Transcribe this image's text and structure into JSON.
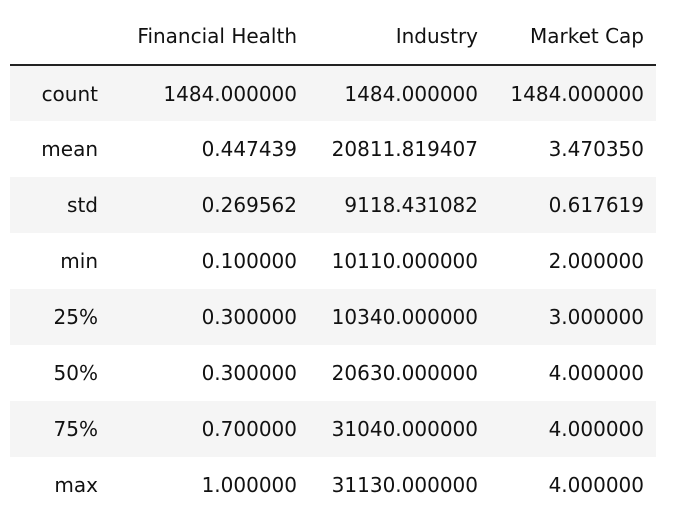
{
  "table": {
    "index_header": "",
    "columns": [
      "Financial Health",
      "Industry",
      "Market Cap"
    ],
    "rows": [
      {
        "label": "count",
        "values": [
          "1484.000000",
          "1484.000000",
          "1484.000000"
        ]
      },
      {
        "label": "mean",
        "values": [
          "0.447439",
          "20811.819407",
          "3.470350"
        ]
      },
      {
        "label": "std",
        "values": [
          "0.269562",
          "9118.431082",
          "0.617619"
        ]
      },
      {
        "label": "min",
        "values": [
          "0.100000",
          "10110.000000",
          "2.000000"
        ]
      },
      {
        "label": "25%",
        "values": [
          "0.300000",
          "10340.000000",
          "3.000000"
        ]
      },
      {
        "label": "50%",
        "values": [
          "0.300000",
          "20630.000000",
          "4.000000"
        ]
      },
      {
        "label": "75%",
        "values": [
          "0.700000",
          "31040.000000",
          "4.000000"
        ]
      },
      {
        "label": "max",
        "values": [
          "1.000000",
          "31130.000000",
          "4.000000"
        ]
      }
    ]
  }
}
